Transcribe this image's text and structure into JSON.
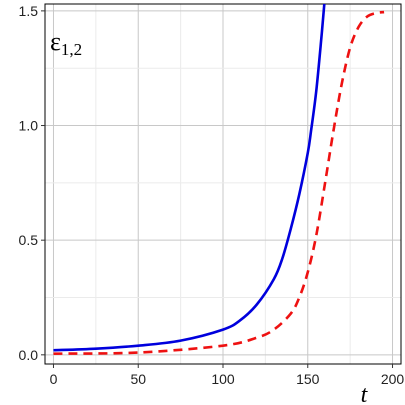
{
  "chart_data": {
    "type": "line",
    "title": "",
    "xlabel": "t",
    "ylabel": "",
    "annotation": {
      "symbol": "ε",
      "subscript": "1,2"
    },
    "xlim": [
      -5,
      205
    ],
    "ylim": [
      -0.04,
      1.53
    ],
    "x_ticks": [
      0,
      50,
      100,
      150,
      200
    ],
    "y_ticks": [
      0.0,
      0.5,
      1.0,
      1.5
    ],
    "x_tick_labels": [
      "0",
      "50",
      "100",
      "150",
      "200"
    ],
    "y_tick_labels": [
      "0.0",
      "0.5",
      "1.0",
      "1.5"
    ],
    "grid": true,
    "series": [
      {
        "color": "#0000dd",
        "style": "solid",
        "x": [
          0,
          25,
          50,
          75,
          100,
          110,
          120,
          130,
          135,
          140,
          145,
          150,
          152,
          155,
          158,
          160
        ],
        "y": [
          0.02,
          0.027,
          0.04,
          0.062,
          0.11,
          0.15,
          0.22,
          0.33,
          0.42,
          0.55,
          0.7,
          0.88,
          0.98,
          1.15,
          1.38,
          1.55
        ]
      },
      {
        "color": "#ee1111",
        "style": "dashed",
        "x": [
          0,
          50,
          100,
          120,
          130,
          140,
          145,
          150,
          155,
          160,
          165,
          170,
          175,
          180,
          185,
          190,
          195
        ],
        "y": [
          0.005,
          0.01,
          0.04,
          0.075,
          0.11,
          0.18,
          0.25,
          0.36,
          0.52,
          0.74,
          0.97,
          1.18,
          1.34,
          1.43,
          1.475,
          1.49,
          1.495
        ]
      }
    ]
  }
}
